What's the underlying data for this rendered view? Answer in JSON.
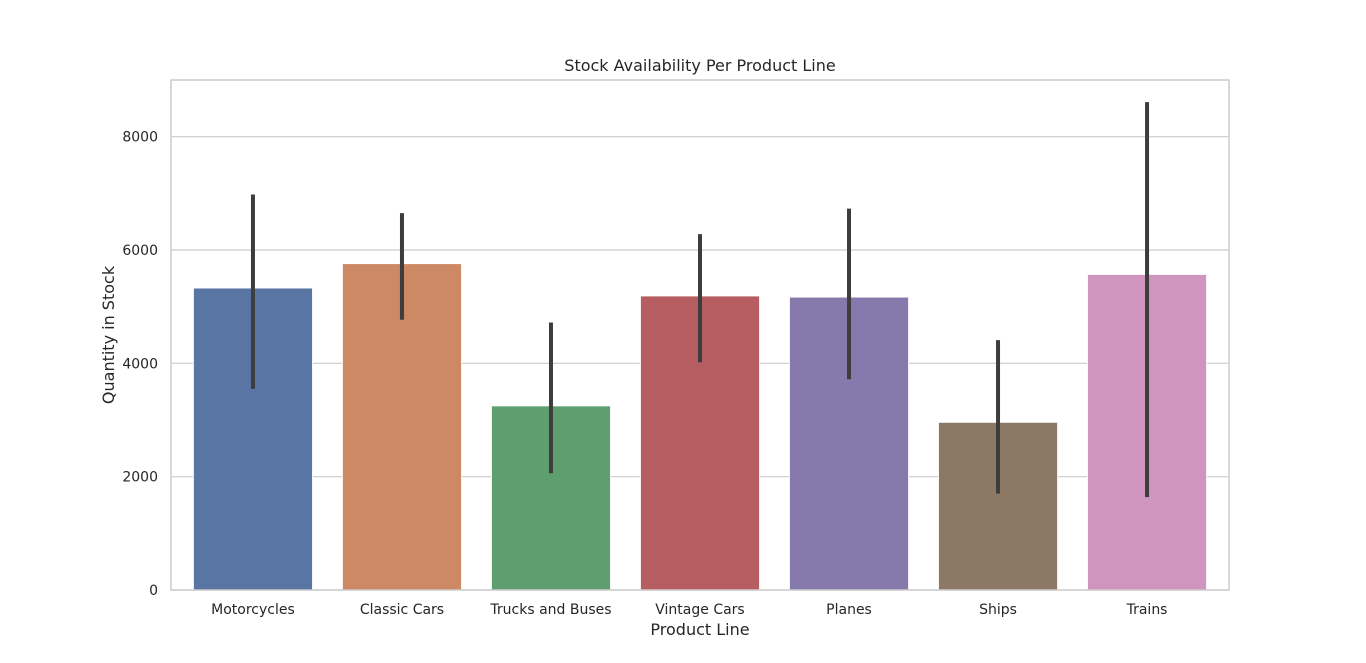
{
  "chart_data": {
    "type": "bar",
    "title": "Stock Availability Per Product Line",
    "xlabel": "Product Line",
    "ylabel": "Quantity in Stock",
    "categories": [
      "Motorcycles",
      "Classic Cars",
      "Trucks and Buses",
      "Vintage Cars",
      "Planes",
      "Ships",
      "Trains"
    ],
    "values": [
      5330,
      5760,
      3250,
      5190,
      5170,
      2960,
      5570
    ],
    "error_bars": [
      [
        3550,
        6980
      ],
      [
        4770,
        6650
      ],
      [
        2060,
        4720
      ],
      [
        4020,
        6280
      ],
      [
        3720,
        6730
      ],
      [
        1700,
        4410
      ],
      [
        1640,
        8610
      ]
    ],
    "colors": [
      "#5875a4",
      "#cc8963",
      "#5f9e6e",
      "#b55d60",
      "#857aab",
      "#8d7866",
      "#d095bf"
    ],
    "error_color": "#3d3d3d",
    "ylim": [
      0,
      9000
    ],
    "yticks": [
      0,
      2000,
      4000,
      6000,
      8000
    ],
    "grid": "y"
  }
}
